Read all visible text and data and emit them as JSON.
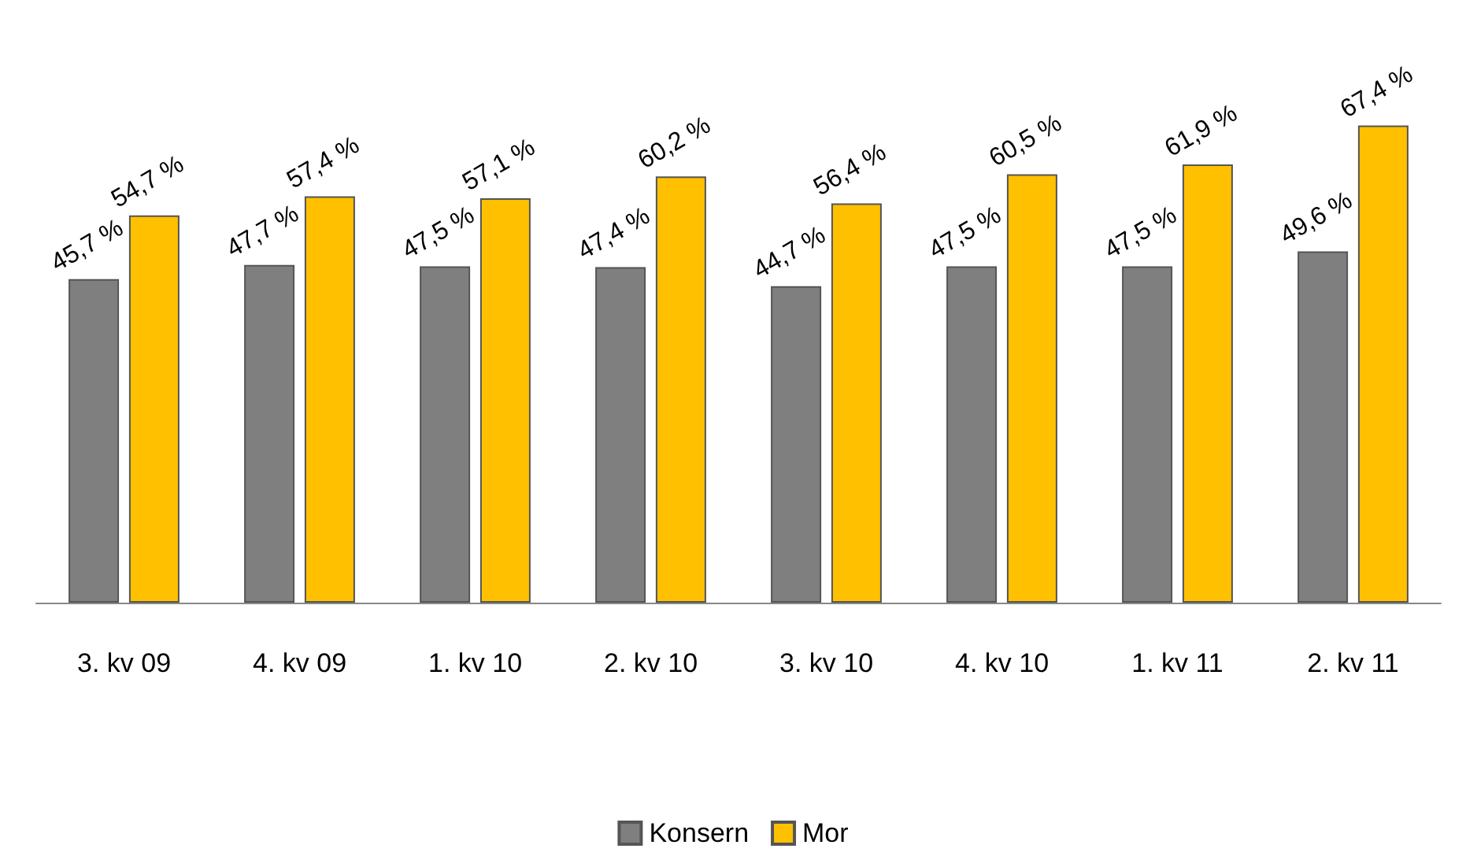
{
  "chart_data": {
    "type": "bar",
    "categories": [
      "3. kv 09",
      "4. kv 09",
      "1. kv 10",
      "2. kv 10",
      "3. kv 10",
      "4. kv 10",
      "1. kv 11",
      "2. kv 11"
    ],
    "series": [
      {
        "name": "Konsern",
        "color": "#7f7f7f",
        "values": [
          45.7,
          47.7,
          47.5,
          47.4,
          44.7,
          47.5,
          47.5,
          49.6
        ],
        "value_labels": [
          "45,7 %",
          "47,7 %",
          "47,5 %",
          "47,4 %",
          "44,7 %",
          "47,5 %",
          "47,5 %",
          "49,6 %"
        ]
      },
      {
        "name": "Mor",
        "color": "#ffc000",
        "values": [
          54.7,
          57.4,
          57.1,
          60.2,
          56.4,
          60.5,
          61.9,
          67.4
        ],
        "value_labels": [
          "54,7 %",
          "57,4 %",
          "57,1 %",
          "60,2 %",
          "56,4 %",
          "60,5 %",
          "61,9 %",
          "67,4 %"
        ]
      }
    ],
    "legend": "bottom",
    "grid": false
  }
}
